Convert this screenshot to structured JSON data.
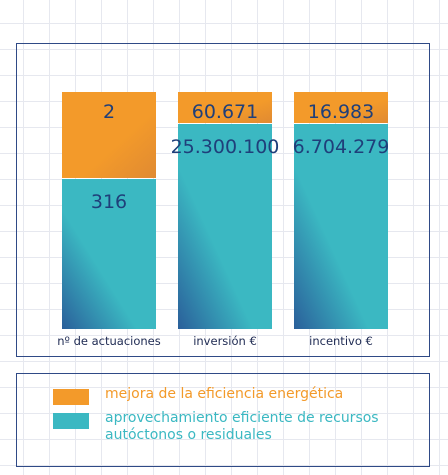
{
  "colors": {
    "energy": "#f39a2a",
    "energy_dark": "#e8882a",
    "resources": "#3bb8c2",
    "resources_dark": "#2a5f9a",
    "label_text": "#1f3f7a",
    "frame": "#2f4a86"
  },
  "chart_data": {
    "type": "bar",
    "stacked": true,
    "normalized": true,
    "categories": [
      "nº de actuaciones",
      "inversión €",
      "incentivo €"
    ],
    "series": [
      {
        "name": "aprovechamiento eficiente de recursos autóctonos o residuales",
        "values": [
          316,
          25300100,
          6704279
        ],
        "labels": [
          "316",
          "25.300.100",
          "6.704.279"
        ],
        "color": "#3bb8c2"
      },
      {
        "name": "mejora de la eficiencia energética",
        "values": [
          2,
          60671,
          16983
        ],
        "labels": [
          "2",
          "60.671",
          "16.983"
        ],
        "color": "#f39a2a"
      }
    ],
    "legend_position": "bottom"
  },
  "legend": {
    "energy_label": "mejora de la eficiencia energética",
    "resources_label": "aprovechamiento eficiente de recursos autóctonos o residuales"
  }
}
